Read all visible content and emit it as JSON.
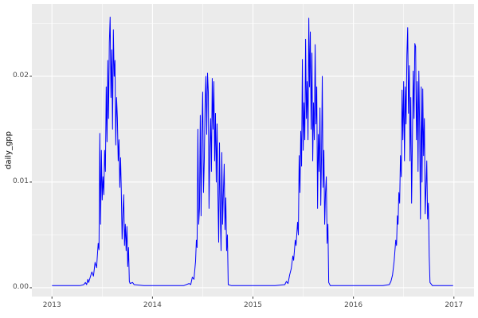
{
  "style": {
    "background": "#FFFFFF",
    "panel_bg": "#EBEBEB",
    "grid_color": "#FFFFFF",
    "line_color": "#0000FF",
    "tick_mark_color": "#333333",
    "tick_label_color": "#4D4D4D",
    "axis_title_color": "#000000"
  },
  "chart_data": {
    "type": "line",
    "title": "",
    "xlabel": "",
    "ylabel": "daily_gpp",
    "legend": "none",
    "grid": "white major and minor gridlines on grey panel (ggplot theme_grey)",
    "xlim": [
      2012.8,
      2017.2
    ],
    "ylim": [
      -0.00083,
      0.02684
    ],
    "x_ticks": [
      {
        "label": "2013",
        "x": 2013
      },
      {
        "label": "2014",
        "x": 2014
      },
      {
        "label": "2015",
        "x": 2015
      },
      {
        "label": "2016",
        "x": 2016
      },
      {
        "label": "2017",
        "x": 2017
      }
    ],
    "x_minor_ticks": [
      2013.5,
      2014.5,
      2015.5,
      2016.5
    ],
    "y_ticks": [
      {
        "label": "0.00",
        "v": 0.0
      },
      {
        "label": "0.01",
        "v": 0.01
      },
      {
        "label": "0.02",
        "v": 0.02
      }
    ],
    "y_minor_ticks": [
      0.005,
      0.015,
      0.025
    ],
    "series": [
      {
        "name": "daily_gpp",
        "color": "#0000FF",
        "points": [
          [
            2013.0,
            0.0002
          ],
          [
            2013.159,
            0.0002
          ],
          [
            2013.278,
            0.0002
          ],
          [
            2013.317,
            0.0003
          ],
          [
            2013.333,
            0.0005
          ],
          [
            2013.345,
            0.0003
          ],
          [
            2013.357,
            0.0008
          ],
          [
            2013.365,
            0.0005
          ],
          [
            2013.381,
            0.001
          ],
          [
            2013.397,
            0.0015
          ],
          [
            2013.413,
            0.0011
          ],
          [
            2013.429,
            0.0024
          ],
          [
            2013.444,
            0.0019
          ],
          [
            2013.46,
            0.0042
          ],
          [
            2013.468,
            0.0036
          ],
          [
            2013.476,
            0.0146
          ],
          [
            2013.484,
            0.006
          ],
          [
            2013.492,
            0.013
          ],
          [
            2013.5,
            0.0083
          ],
          [
            2013.508,
            0.0105
          ],
          [
            2013.516,
            0.0088
          ],
          [
            2013.524,
            0.013
          ],
          [
            2013.532,
            0.011
          ],
          [
            2013.54,
            0.019
          ],
          [
            2013.548,
            0.0138
          ],
          [
            2013.556,
            0.0215
          ],
          [
            2013.563,
            0.016
          ],
          [
            2013.571,
            0.0232
          ],
          [
            2013.579,
            0.0256
          ],
          [
            2013.587,
            0.018
          ],
          [
            2013.595,
            0.0225
          ],
          [
            2013.603,
            0.015
          ],
          [
            2013.611,
            0.0244
          ],
          [
            2013.619,
            0.02
          ],
          [
            2013.627,
            0.0215
          ],
          [
            2013.635,
            0.0135
          ],
          [
            2013.643,
            0.018
          ],
          [
            2013.651,
            0.0161
          ],
          [
            2013.659,
            0.012
          ],
          [
            2013.667,
            0.014
          ],
          [
            2013.675,
            0.0095
          ],
          [
            2013.683,
            0.0123
          ],
          [
            2013.69,
            0.0092
          ],
          [
            2013.698,
            0.0046
          ],
          [
            2013.706,
            0.007
          ],
          [
            2013.714,
            0.0088
          ],
          [
            2013.722,
            0.004
          ],
          [
            2013.73,
            0.006
          ],
          [
            2013.738,
            0.0035
          ],
          [
            2013.746,
            0.0058
          ],
          [
            2013.754,
            0.002
          ],
          [
            2013.762,
            0.0038
          ],
          [
            2013.77,
            0.0006
          ],
          [
            2013.778,
            0.0004
          ],
          [
            2013.802,
            0.0005
          ],
          [
            2013.817,
            0.0003
          ],
          [
            2013.913,
            0.0002
          ],
          [
            2014.151,
            0.0002
          ],
          [
            2014.31,
            0.0002
          ],
          [
            2014.365,
            0.0004
          ],
          [
            2014.381,
            0.0003
          ],
          [
            2014.397,
            0.001
          ],
          [
            2014.413,
            0.0008
          ],
          [
            2014.429,
            0.0025
          ],
          [
            2014.437,
            0.0045
          ],
          [
            2014.444,
            0.0038
          ],
          [
            2014.452,
            0.015
          ],
          [
            2014.46,
            0.006
          ],
          [
            2014.468,
            0.0075
          ],
          [
            2014.476,
            0.0163
          ],
          [
            2014.484,
            0.0068
          ],
          [
            2014.492,
            0.0145
          ],
          [
            2014.5,
            0.0185
          ],
          [
            2014.508,
            0.009
          ],
          [
            2014.516,
            0.012
          ],
          [
            2014.524,
            0.0175
          ],
          [
            2014.532,
            0.02
          ],
          [
            2014.54,
            0.0145
          ],
          [
            2014.548,
            0.0203
          ],
          [
            2014.556,
            0.0185
          ],
          [
            2014.563,
            0.0075
          ],
          [
            2014.571,
            0.013
          ],
          [
            2014.579,
            0.016
          ],
          [
            2014.587,
            0.011
          ],
          [
            2014.595,
            0.0198
          ],
          [
            2014.603,
            0.015
          ],
          [
            2014.611,
            0.0195
          ],
          [
            2014.619,
            0.012
          ],
          [
            2014.627,
            0.0165
          ],
          [
            2014.635,
            0.01
          ],
          [
            2014.643,
            0.0155
          ],
          [
            2014.651,
            0.009
          ],
          [
            2014.659,
            0.0043
          ],
          [
            2014.667,
            0.0137
          ],
          [
            2014.675,
            0.007
          ],
          [
            2014.683,
            0.0035
          ],
          [
            2014.69,
            0.0128
          ],
          [
            2014.698,
            0.006
          ],
          [
            2014.706,
            0.009
          ],
          [
            2014.714,
            0.0117
          ],
          [
            2014.722,
            0.0055
          ],
          [
            2014.73,
            0.0085
          ],
          [
            2014.738,
            0.0035
          ],
          [
            2014.746,
            0.005
          ],
          [
            2014.754,
            0.0003
          ],
          [
            2014.786,
            0.0002
          ],
          [
            2015.024,
            0.0002
          ],
          [
            2015.222,
            0.0002
          ],
          [
            2015.317,
            0.0003
          ],
          [
            2015.333,
            0.0006
          ],
          [
            2015.349,
            0.0004
          ],
          [
            2015.365,
            0.0012
          ],
          [
            2015.381,
            0.0018
          ],
          [
            2015.397,
            0.003
          ],
          [
            2015.405,
            0.0026
          ],
          [
            2015.421,
            0.0045
          ],
          [
            2015.429,
            0.004
          ],
          [
            2015.444,
            0.0062
          ],
          [
            2015.452,
            0.005
          ],
          [
            2015.46,
            0.0125
          ],
          [
            2015.468,
            0.009
          ],
          [
            2015.476,
            0.0148
          ],
          [
            2015.484,
            0.0115
          ],
          [
            2015.492,
            0.0216
          ],
          [
            2015.5,
            0.013
          ],
          [
            2015.508,
            0.0175
          ],
          [
            2015.516,
            0.014
          ],
          [
            2015.524,
            0.0235
          ],
          [
            2015.532,
            0.016
          ],
          [
            2015.54,
            0.0195
          ],
          [
            2015.548,
            0.014
          ],
          [
            2015.556,
            0.0255
          ],
          [
            2015.563,
            0.019
          ],
          [
            2015.571,
            0.0242
          ],
          [
            2015.579,
            0.015
          ],
          [
            2015.587,
            0.0222
          ],
          [
            2015.595,
            0.012
          ],
          [
            2015.603,
            0.0175
          ],
          [
            2015.611,
            0.014
          ],
          [
            2015.619,
            0.023
          ],
          [
            2015.627,
            0.0155
          ],
          [
            2015.635,
            0.019
          ],
          [
            2015.643,
            0.0075
          ],
          [
            2015.651,
            0.0145
          ],
          [
            2015.659,
            0.011
          ],
          [
            2015.667,
            0.017
          ],
          [
            2015.675,
            0.0078
          ],
          [
            2015.683,
            0.0128
          ],
          [
            2015.69,
            0.02
          ],
          [
            2015.698,
            0.0095
          ],
          [
            2015.706,
            0.013
          ],
          [
            2015.714,
            0.006
          ],
          [
            2015.722,
            0.009
          ],
          [
            2015.73,
            0.0105
          ],
          [
            2015.738,
            0.0042
          ],
          [
            2015.746,
            0.006
          ],
          [
            2015.754,
            0.0005
          ],
          [
            2015.77,
            0.0002
          ],
          [
            2016.056,
            0.0002
          ],
          [
            2016.294,
            0.0002
          ],
          [
            2016.357,
            0.0003
          ],
          [
            2016.373,
            0.0006
          ],
          [
            2016.389,
            0.0012
          ],
          [
            2016.405,
            0.0025
          ],
          [
            2016.421,
            0.0045
          ],
          [
            2016.429,
            0.004
          ],
          [
            2016.437,
            0.0068
          ],
          [
            2016.444,
            0.006
          ],
          [
            2016.452,
            0.009
          ],
          [
            2016.46,
            0.008
          ],
          [
            2016.468,
            0.0125
          ],
          [
            2016.476,
            0.0105
          ],
          [
            2016.484,
            0.0187
          ],
          [
            2016.492,
            0.014
          ],
          [
            2016.5,
            0.0195
          ],
          [
            2016.508,
            0.012
          ],
          [
            2016.516,
            0.019
          ],
          [
            2016.524,
            0.0155
          ],
          [
            2016.532,
            0.022
          ],
          [
            2016.54,
            0.0246
          ],
          [
            2016.548,
            0.0165
          ],
          [
            2016.556,
            0.021
          ],
          [
            2016.563,
            0.012
          ],
          [
            2016.571,
            0.018
          ],
          [
            2016.579,
            0.008
          ],
          [
            2016.587,
            0.014
          ],
          [
            2016.595,
            0.0205
          ],
          [
            2016.603,
            0.016
          ],
          [
            2016.611,
            0.0231
          ],
          [
            2016.619,
            0.0228
          ],
          [
            2016.627,
            0.014
          ],
          [
            2016.635,
            0.0195
          ],
          [
            2016.643,
            0.011
          ],
          [
            2016.651,
            0.0205
          ],
          [
            2016.659,
            0.015
          ],
          [
            2016.667,
            0.0065
          ],
          [
            2016.675,
            0.019
          ],
          [
            2016.683,
            0.01
          ],
          [
            2016.69,
            0.0188
          ],
          [
            2016.698,
            0.0125
          ],
          [
            2016.706,
            0.016
          ],
          [
            2016.714,
            0.007
          ],
          [
            2016.722,
            0.0095
          ],
          [
            2016.73,
            0.012
          ],
          [
            2016.738,
            0.0065
          ],
          [
            2016.746,
            0.008
          ],
          [
            2016.754,
            0.003
          ],
          [
            2016.762,
            0.0005
          ],
          [
            2016.786,
            0.0002
          ],
          [
            2016.992,
            0.0002
          ]
        ]
      }
    ]
  }
}
